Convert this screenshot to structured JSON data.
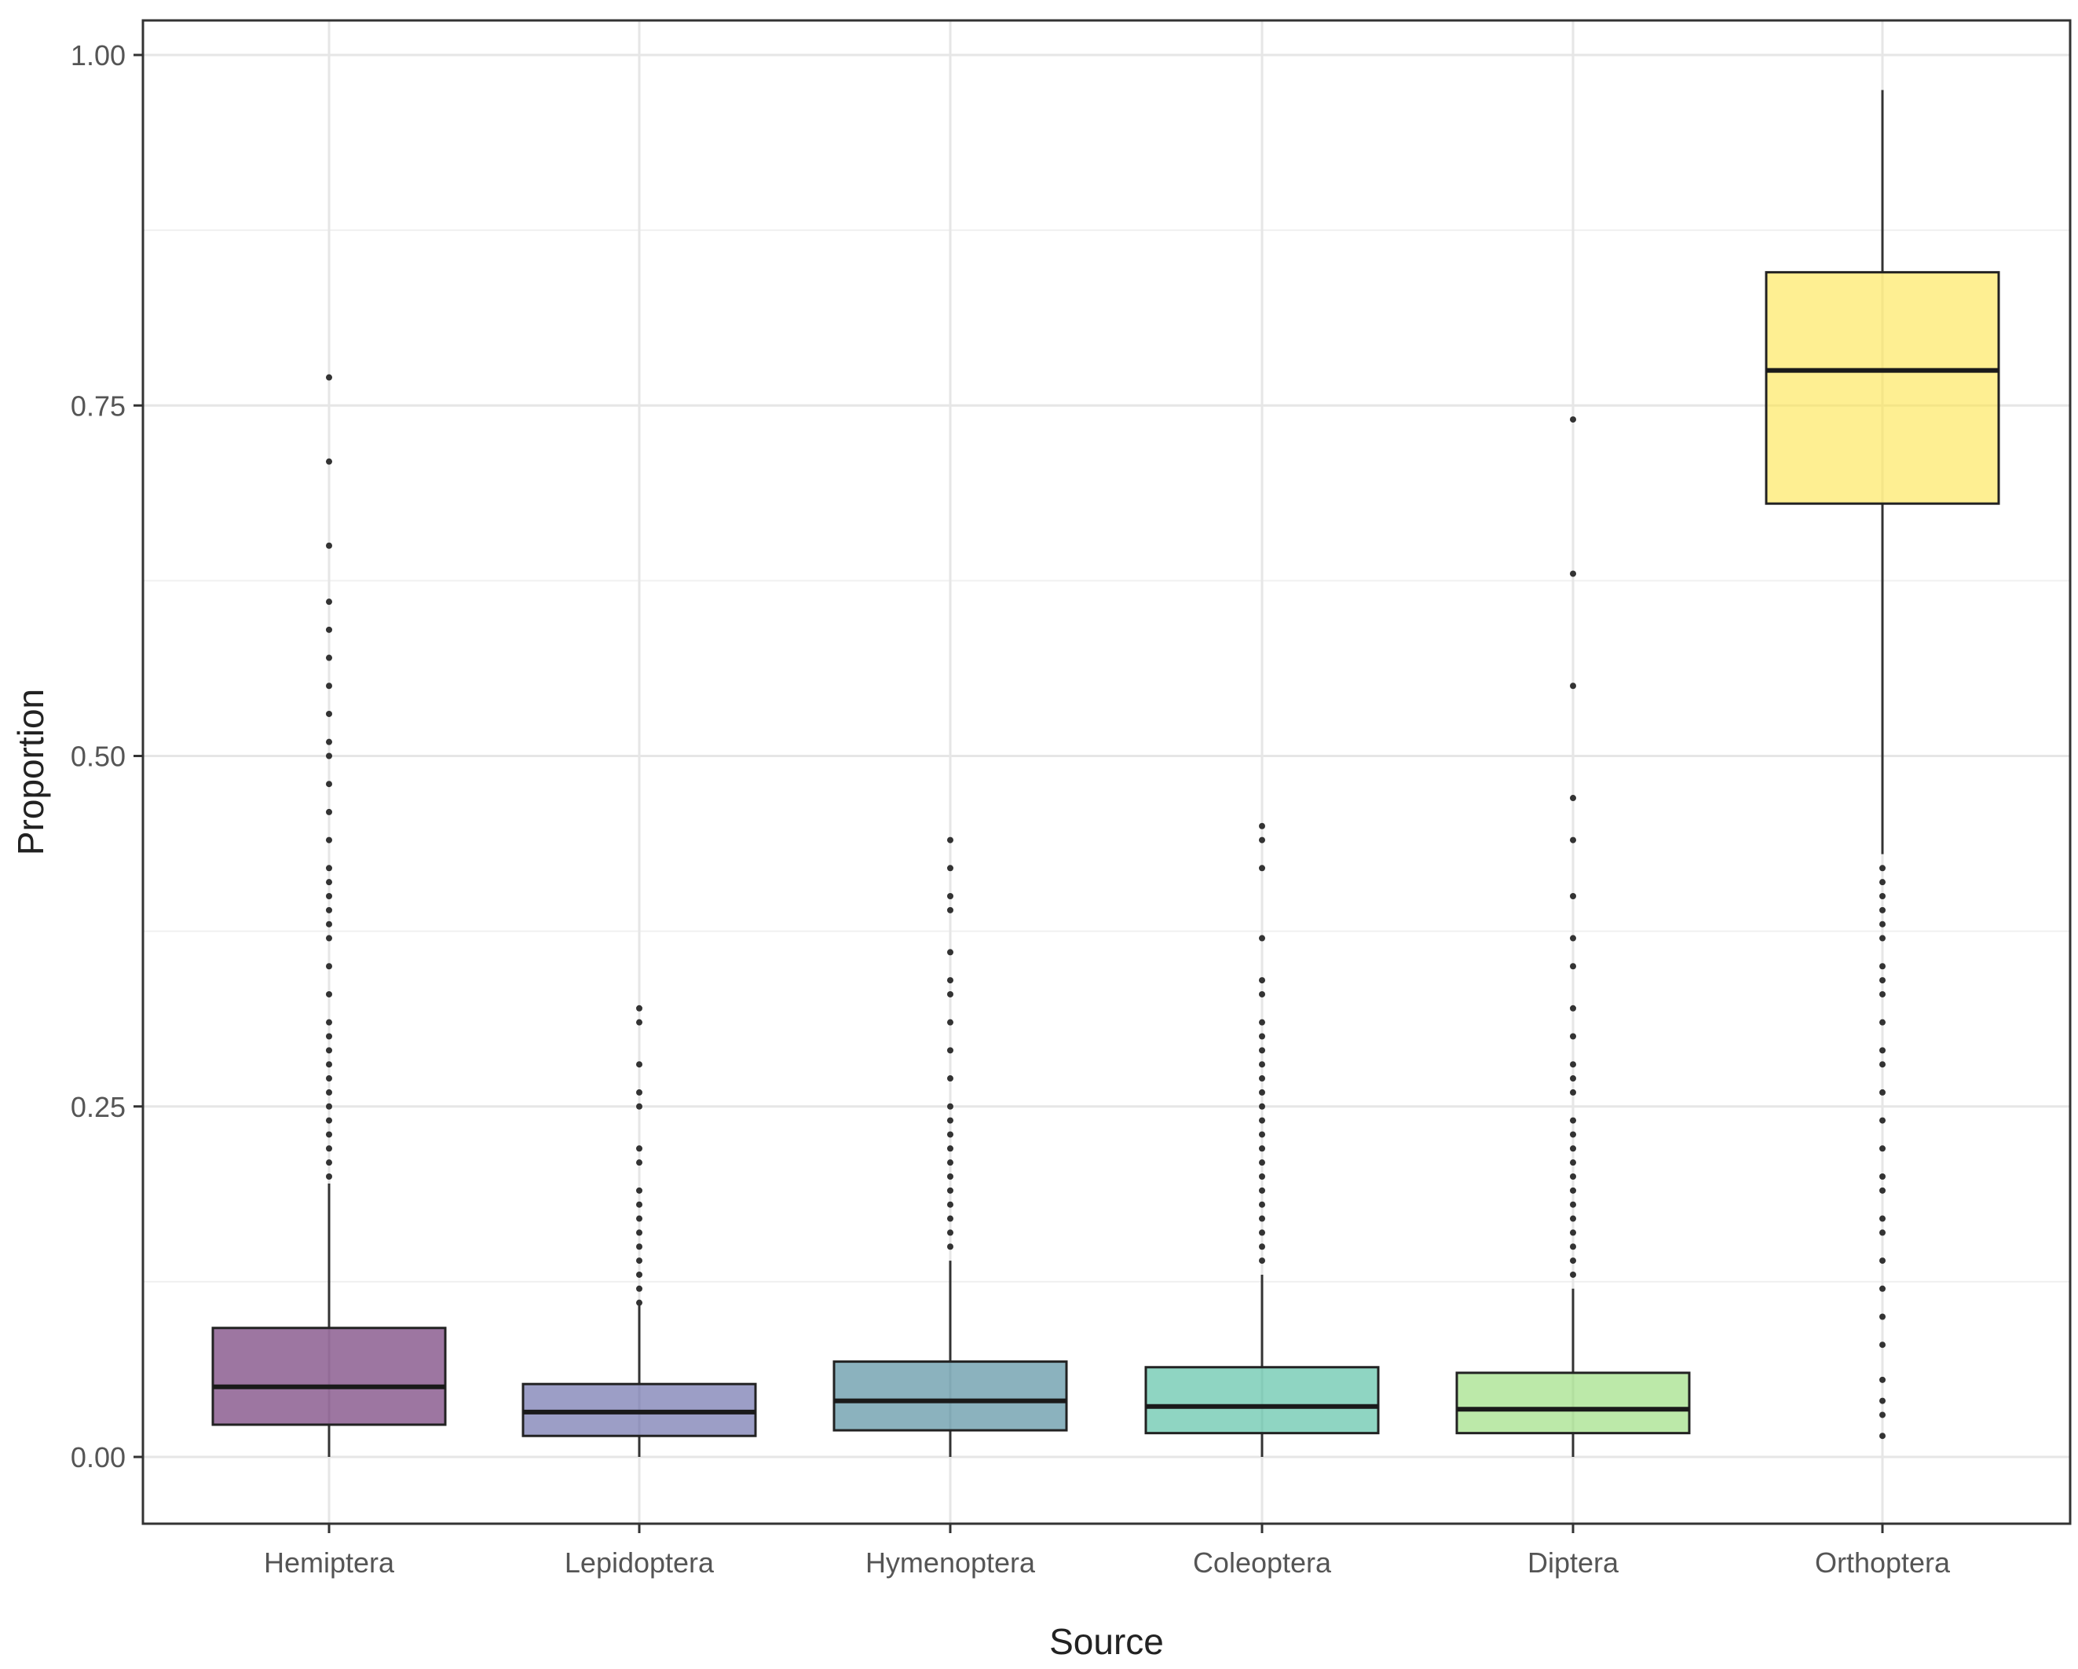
{
  "chart_data": {
    "type": "boxplot",
    "xlabel": "Source",
    "ylabel": "Proportion",
    "ylim": [
      -0.04,
      1.025
    ],
    "y_ticks": [
      0.0,
      0.25,
      0.5,
      0.75,
      1.0
    ],
    "y_tick_labels": [
      "0.00",
      "0.25",
      "0.50",
      "0.75",
      "1.00"
    ],
    "categories": [
      "Hemiptera",
      "Lepidoptera",
      "Hymenoptera",
      "Coleoptera",
      "Diptera",
      "Orthoptera"
    ],
    "boxes": [
      {
        "name": "Hemiptera",
        "color": "#5c1a63",
        "whisker_low": 0.0,
        "q1": 0.023,
        "median": 0.05,
        "q3": 0.092,
        "whisker_high": 0.195,
        "outliers": [
          0.2,
          0.21,
          0.22,
          0.23,
          0.24,
          0.25,
          0.26,
          0.27,
          0.28,
          0.29,
          0.3,
          0.31,
          0.33,
          0.35,
          0.37,
          0.38,
          0.39,
          0.4,
          0.41,
          0.42,
          0.44,
          0.46,
          0.48,
          0.5,
          0.51,
          0.53,
          0.55,
          0.57,
          0.59,
          0.61,
          0.65,
          0.71,
          0.77
        ]
      },
      {
        "name": "Lepidoptera",
        "color": "#5a5ea0",
        "whisker_low": 0.0,
        "q1": 0.015,
        "median": 0.032,
        "q3": 0.052,
        "whisker_high": 0.108,
        "outliers": [
          0.11,
          0.12,
          0.13,
          0.14,
          0.15,
          0.16,
          0.17,
          0.18,
          0.19,
          0.21,
          0.22,
          0.25,
          0.26,
          0.28,
          0.31,
          0.32
        ]
      },
      {
        "name": "Hymenoptera",
        "color": "#3d7f92",
        "whisker_low": 0.0,
        "q1": 0.019,
        "median": 0.04,
        "q3": 0.068,
        "whisker_high": 0.14,
        "outliers": [
          0.15,
          0.16,
          0.17,
          0.18,
          0.19,
          0.2,
          0.21,
          0.22,
          0.23,
          0.24,
          0.25,
          0.27,
          0.29,
          0.31,
          0.33,
          0.34,
          0.36,
          0.39,
          0.4,
          0.42,
          0.44
        ]
      },
      {
        "name": "Coleoptera",
        "color": "#45b99a",
        "whisker_low": 0.0,
        "q1": 0.017,
        "median": 0.036,
        "q3": 0.064,
        "whisker_high": 0.13,
        "outliers": [
          0.14,
          0.15,
          0.16,
          0.17,
          0.18,
          0.19,
          0.2,
          0.21,
          0.22,
          0.23,
          0.24,
          0.25,
          0.26,
          0.27,
          0.28,
          0.29,
          0.3,
          0.31,
          0.33,
          0.34,
          0.37,
          0.42,
          0.44,
          0.45
        ]
      },
      {
        "name": "Diptera",
        "color": "#8fdb6f",
        "whisker_low": 0.0,
        "q1": 0.017,
        "median": 0.034,
        "q3": 0.06,
        "whisker_high": 0.12,
        "outliers": [
          0.13,
          0.14,
          0.15,
          0.16,
          0.17,
          0.18,
          0.19,
          0.2,
          0.21,
          0.22,
          0.23,
          0.24,
          0.26,
          0.27,
          0.28,
          0.3,
          0.32,
          0.35,
          0.37,
          0.4,
          0.44,
          0.47,
          0.55,
          0.63,
          0.74
        ]
      },
      {
        "name": "Orthoptera",
        "color": "#fde54a",
        "whisker_low": 0.43,
        "q1": 0.68,
        "median": 0.775,
        "q3": 0.845,
        "whisker_high": 0.975,
        "outliers": [
          0.015,
          0.03,
          0.04,
          0.055,
          0.08,
          0.1,
          0.12,
          0.14,
          0.16,
          0.17,
          0.19,
          0.2,
          0.22,
          0.24,
          0.26,
          0.28,
          0.29,
          0.31,
          0.33,
          0.34,
          0.35,
          0.37,
          0.38,
          0.39,
          0.4,
          0.41,
          0.42
        ]
      }
    ]
  }
}
